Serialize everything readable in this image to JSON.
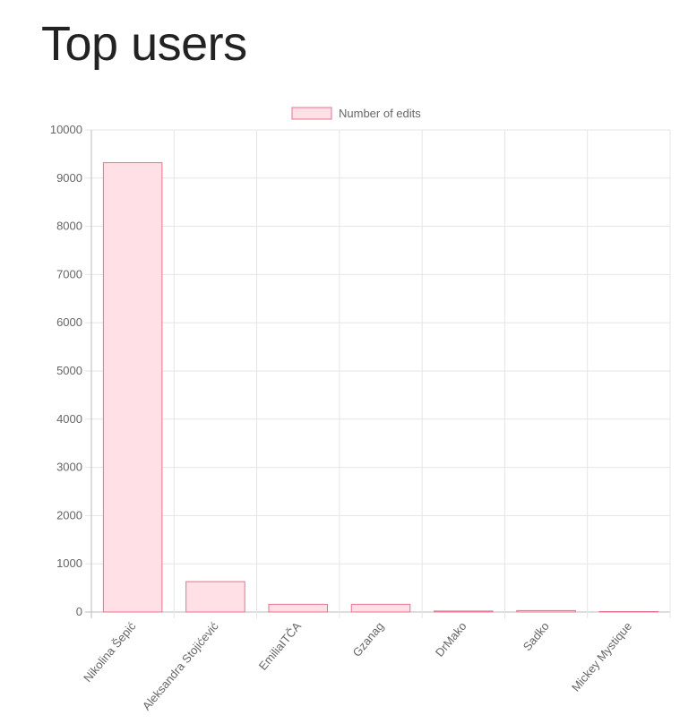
{
  "page": {
    "title": "Top users"
  },
  "colors": {
    "bar_fill": "#ffe0e6",
    "bar_stroke": "#e8728f",
    "grid": "#e5e5e5",
    "axis": "#bbbbbb",
    "text": "#666666"
  },
  "chart_data": {
    "type": "bar",
    "title": "",
    "xlabel": "",
    "ylabel": "",
    "legend": "top",
    "grid": true,
    "ylim": [
      0,
      10000
    ],
    "yticks": [
      0,
      1000,
      2000,
      3000,
      4000,
      5000,
      6000,
      7000,
      8000,
      9000,
      10000
    ],
    "categories": [
      "Nikolina Šepić",
      "Aleksandra Stojićević",
      "EmiliaITČA",
      "Gzanag",
      "DrMako",
      "Sadko",
      "Mickey Mystique"
    ],
    "series": [
      {
        "name": "Number of edits",
        "values": [
          9320,
          630,
          160,
          160,
          20,
          30,
          5
        ]
      }
    ]
  }
}
